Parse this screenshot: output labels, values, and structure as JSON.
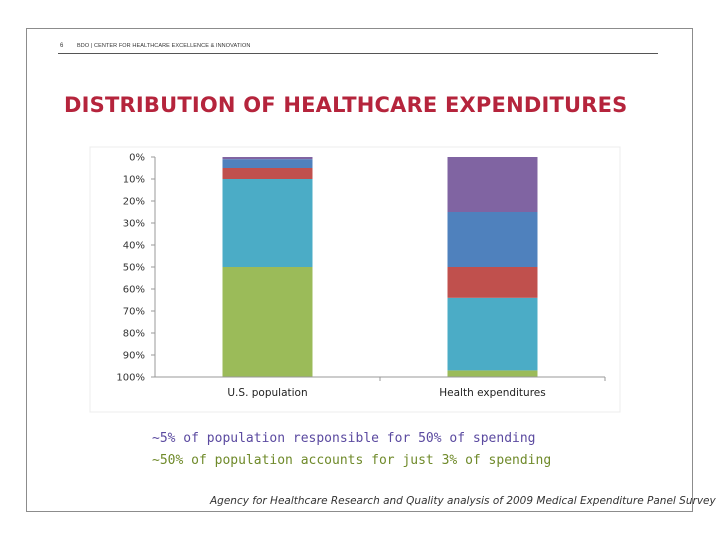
{
  "header": {
    "page_number": "6",
    "text": "BDO | CENTER FOR HEALTHCARE EXCELLENCE & INNOVATION"
  },
  "title": "DISTRIBUTION OF HEALTHCARE EXPENDITURES",
  "notes": {
    "line1": "~5% of population responsible for 50% of spending",
    "line2": "~50% of population accounts for just 3% of spending"
  },
  "source": "Agency for Healthcare Research and Quality analysis of 2009 Medical Expenditure Panel Survey",
  "colors": {
    "title": "#b5243c",
    "note1": "#5b4aa0",
    "note2": "#6f8a2a"
  },
  "chart_data": {
    "type": "bar",
    "stacked": true,
    "orientation": "vertical",
    "y_reversed": true,
    "categories": [
      "U.S. population",
      "Health expenditures"
    ],
    "ylim": [
      0,
      100
    ],
    "yticks": [
      "0%",
      "10%",
      "20%",
      "30%",
      "40%",
      "50%",
      "60%",
      "70%",
      "80%",
      "90%",
      "100%"
    ],
    "grid": false,
    "legend": "none",
    "segments_bottom_to_top": [
      {
        "color": "#9bbb59",
        "values": [
          50,
          3
        ]
      },
      {
        "color": "#4bacc6",
        "values": [
          40,
          33
        ]
      },
      {
        "color": "#c0504d",
        "values": [
          5,
          14
        ]
      },
      {
        "color": "#4f81bd",
        "values": [
          4,
          25
        ]
      },
      {
        "color": "#8064a2",
        "values": [
          1,
          25
        ]
      }
    ]
  }
}
